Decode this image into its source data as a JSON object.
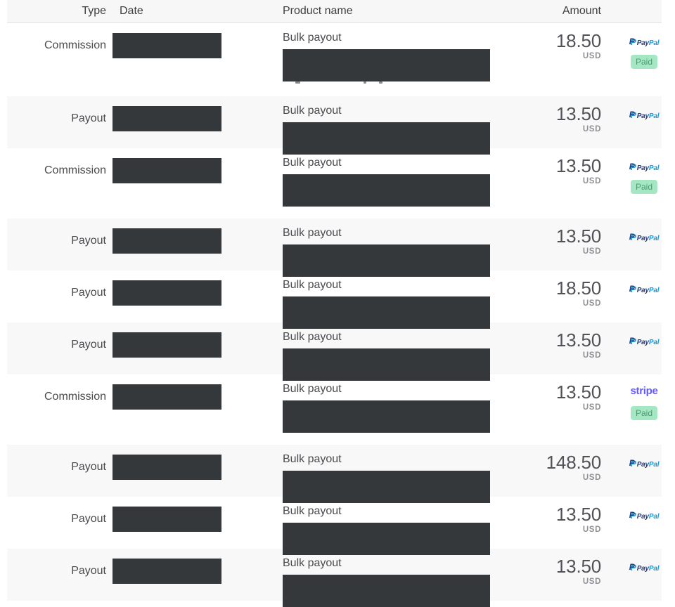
{
  "header": {
    "columns": [
      {
        "key": "type",
        "label": "Type"
      },
      {
        "key": "date",
        "label": "Date"
      },
      {
        "key": "product",
        "label": "Product name"
      },
      {
        "key": "amount",
        "label": "Amount"
      }
    ]
  },
  "rows": [
    {
      "type": "Commission",
      "product": "Bulk payout",
      "amount": "18.50",
      "currency": "USD",
      "method": "paypal",
      "status": "Paid",
      "redacted_date": true,
      "redacted_details": true,
      "artifact_marks": true
    },
    {
      "type": "Payout",
      "product": "Bulk payout",
      "amount": "13.50",
      "currency": "USD",
      "method": "paypal",
      "status": null,
      "redacted_date": true,
      "redacted_details": true
    },
    {
      "type": "Commission",
      "product": "Bulk payout",
      "amount": "13.50",
      "currency": "USD",
      "method": "paypal",
      "status": "Paid",
      "redacted_date": true,
      "redacted_details": true
    },
    {
      "type": "Payout",
      "product": "Bulk payout",
      "amount": "13.50",
      "currency": "USD",
      "method": "paypal",
      "status": null,
      "redacted_date": true,
      "redacted_details": true
    },
    {
      "type": "Payout",
      "product": "Bulk payout",
      "amount": "18.50",
      "currency": "USD",
      "method": "paypal",
      "status": null,
      "redacted_date": true,
      "redacted_details": true
    },
    {
      "type": "Payout",
      "product": "Bulk payout",
      "amount": "13.50",
      "currency": "USD",
      "method": "paypal",
      "status": null,
      "redacted_date": true,
      "redacted_details": true
    },
    {
      "type": "Commission",
      "product": "Bulk payout",
      "amount": "13.50",
      "currency": "USD",
      "method": "stripe",
      "status": "Paid",
      "redacted_date": true,
      "redacted_details": true
    },
    {
      "type": "Payout",
      "product": "Bulk payout",
      "amount": "148.50",
      "currency": "USD",
      "method": "paypal",
      "status": null,
      "redacted_date": true,
      "redacted_details": true
    },
    {
      "type": "Payout",
      "product": "Bulk payout",
      "amount": "13.50",
      "currency": "USD",
      "method": "paypal",
      "status": null,
      "redacted_date": true,
      "redacted_details": true
    },
    {
      "type": "Payout",
      "product": "Bulk payout",
      "amount": "13.50",
      "currency": "USD",
      "method": "paypal",
      "status": null,
      "redacted_date": true,
      "redacted_details": true
    }
  ],
  "logos": {
    "paypal": {
      "mark": "P",
      "word_first": "Pay",
      "word_second": "Pal"
    },
    "stripe": {
      "label": "stripe"
    }
  },
  "colors": {
    "paypal_dark": "#253b80",
    "paypal_light": "#179bd7",
    "stripe": "#635bff",
    "badge_bg": "#a5e6c3",
    "badge_text": "#4b9b71",
    "redaction": "#35383a",
    "row_shade": "#f8f8f9",
    "header_bg": "#f7f7f8"
  }
}
